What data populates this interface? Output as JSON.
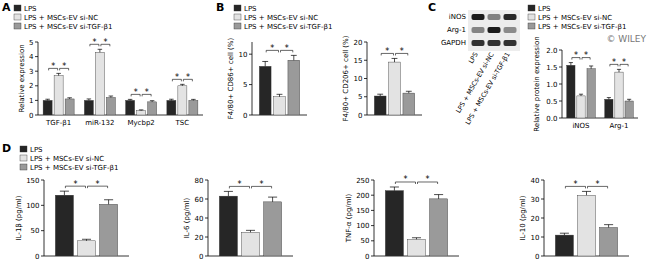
{
  "chart_data": [
    {
      "type": "bar",
      "panel": "A",
      "ylabel": "Relative expression",
      "categories": [
        "TGF-β1",
        "miR-132",
        "Mycbp2",
        "TSC"
      ],
      "series": [
        {
          "name": "LPS",
          "color": "#262626",
          "values": [
            1.0,
            1.0,
            1.0,
            1.0
          ],
          "errors": [
            0.08,
            0.1,
            0.07,
            0.08
          ]
        },
        {
          "name": "LPS + MSCs-EV si-NC",
          "color": "#e3e3e3",
          "values": [
            2.7,
            4.3,
            0.3,
            2.0
          ],
          "errors": [
            0.15,
            0.2,
            0.05,
            0.1
          ]
        },
        {
          "name": "LPS + MSCs-EV si-TGF-β1",
          "color": "#9a9a9a",
          "values": [
            1.1,
            1.2,
            0.9,
            1.0
          ],
          "errors": [
            0.08,
            0.1,
            0.08,
            0.07
          ]
        }
      ],
      "ylim": [
        0,
        5
      ],
      "yticks": [
        0,
        1,
        2,
        3,
        4,
        5
      ],
      "legend": "top-left",
      "comparisons": [
        {
          "series": [
            0,
            1
          ],
          "label": "*"
        },
        {
          "series": [
            1,
            2
          ],
          "label": "*"
        }
      ]
    },
    {
      "type": "bar",
      "panel": "B",
      "ylabel": "F4/80+ CD86+ cell (%)",
      "categories": [
        null
      ],
      "series": [
        {
          "name": "LPS",
          "color": "#262626",
          "values": [
            8.0
          ],
          "errors": [
            0.8
          ]
        },
        {
          "name": "LPS + MSCs-EV si-NC",
          "color": "#e3e3e3",
          "values": [
            3.0
          ],
          "errors": [
            0.4
          ]
        },
        {
          "name": "LPS + MSCs-EV si-TGF-β1",
          "color": "#9a9a9a",
          "values": [
            9.0
          ],
          "errors": [
            0.8
          ]
        }
      ],
      "ylim": [
        0,
        12
      ],
      "yticks": [
        0,
        5,
        10
      ],
      "legend": "top-left",
      "comparisons": [
        {
          "series": [
            0,
            1
          ],
          "label": "*"
        },
        {
          "series": [
            1,
            2
          ],
          "label": "*"
        }
      ]
    },
    {
      "type": "bar",
      "ylabel": "F4/80+ CD206+ cell (%)",
      "categories": [
        null
      ],
      "series": [
        {
          "color": "#262626",
          "values": [
            5.2
          ],
          "errors": [
            0.5
          ]
        },
        {
          "color": "#e3e3e3",
          "values": [
            14.5
          ],
          "errors": [
            1.0
          ]
        },
        {
          "color": "#9a9a9a",
          "values": [
            6.0
          ],
          "errors": [
            0.5
          ]
        }
      ],
      "ylim": [
        0,
        20
      ],
      "yticks": [
        0,
        5,
        10,
        15,
        20
      ],
      "comparisons": [
        {
          "series": [
            0,
            1
          ],
          "label": "*"
        },
        {
          "series": [
            1,
            2
          ],
          "label": "*"
        }
      ]
    },
    {
      "type": "bar",
      "ylabel": "Relative protein expression",
      "categories": [
        "iNOS",
        "Arg-1"
      ],
      "series": [
        {
          "name": "LPS",
          "color": "#262626",
          "values": [
            1.55,
            0.55
          ],
          "errors": [
            0.08,
            0.05
          ]
        },
        {
          "name": "LPS + MSCs-EV si-NC",
          "color": "#e3e3e3",
          "values": [
            0.65,
            1.35
          ],
          "errors": [
            0.05,
            0.08
          ]
        },
        {
          "name": "LPS + MSCs-EV si-TGF-β1",
          "color": "#9a9a9a",
          "values": [
            1.45,
            0.5
          ],
          "errors": [
            0.08,
            0.05
          ]
        }
      ],
      "ylim": [
        0,
        2
      ],
      "yticks": [
        {
          "value": 0,
          "label": "0.0"
        },
        {
          "value": 0.5,
          "label": "0.5"
        },
        {
          "value": 1,
          "label": "1.0"
        },
        {
          "value": 1.5,
          "label": "1.5"
        },
        {
          "value": 2,
          "label": "2.0"
        }
      ],
      "legend": "top-right",
      "comparisons": [
        {
          "series": [
            0,
            1
          ],
          "label": "*"
        },
        {
          "series": [
            1,
            2
          ],
          "label": "*"
        }
      ]
    },
    {
      "type": "bar",
      "panel": "D",
      "ylabel": "IL-1β (pg/ml)",
      "categories": [
        null
      ],
      "series": [
        {
          "name": "LPS",
          "color": "#262626",
          "values": [
            120
          ],
          "errors": [
            8
          ]
        },
        {
          "name": "LPS + MSCs-EV si-NC",
          "color": "#e3e3e3",
          "values": [
            30
          ],
          "errors": [
            3
          ]
        },
        {
          "name": "LPS + MSCs-EV si-TGF-β1",
          "color": "#9a9a9a",
          "values": [
            102
          ],
          "errors": [
            9
          ]
        }
      ],
      "ylim": [
        0,
        150
      ],
      "yticks": [
        0,
        50,
        100,
        150
      ],
      "legend": "top-left",
      "comparisons": [
        {
          "series": [
            0,
            1
          ],
          "label": "*"
        },
        {
          "series": [
            1,
            2
          ],
          "label": "*"
        }
      ]
    },
    {
      "type": "bar",
      "ylabel": "IL-6 (pg/ml)",
      "categories": [
        null
      ],
      "series": [
        {
          "color": "#262626",
          "values": [
            63
          ],
          "errors": [
            5
          ]
        },
        {
          "color": "#e3e3e3",
          "values": [
            25
          ],
          "errors": [
            2
          ]
        },
        {
          "color": "#9a9a9a",
          "values": [
            57
          ],
          "errors": [
            5
          ]
        }
      ],
      "ylim": [
        0,
        80
      ],
      "yticks": [
        0,
        20,
        40,
        60,
        80
      ],
      "comparisons": [
        {
          "series": [
            0,
            1
          ],
          "label": "*"
        },
        {
          "series": [
            1,
            2
          ],
          "label": "*"
        }
      ]
    },
    {
      "type": "bar",
      "ylabel": "TNF-α (pg/ml)",
      "categories": [
        null
      ],
      "series": [
        {
          "color": "#262626",
          "values": [
            215
          ],
          "errors": [
            12
          ]
        },
        {
          "color": "#e3e3e3",
          "values": [
            55
          ],
          "errors": [
            5
          ]
        },
        {
          "color": "#9a9a9a",
          "values": [
            188
          ],
          "errors": [
            14
          ]
        }
      ],
      "ylim": [
        0,
        250
      ],
      "yticks": [
        0,
        50,
        100,
        150,
        200,
        250
      ],
      "comparisons": [
        {
          "series": [
            0,
            1
          ],
          "label": "*"
        },
        {
          "series": [
            1,
            2
          ],
          "label": "*"
        }
      ]
    },
    {
      "type": "bar",
      "ylabel": "IL-10 (pg/ml)",
      "categories": [
        null
      ],
      "series": [
        {
          "color": "#262626",
          "values": [
            11
          ],
          "errors": [
            1
          ]
        },
        {
          "color": "#e3e3e3",
          "values": [
            32
          ],
          "errors": [
            2
          ]
        },
        {
          "color": "#9a9a9a",
          "values": [
            15
          ],
          "errors": [
            1.5
          ]
        }
      ],
      "ylim": [
        0,
        40
      ],
      "yticks": [
        0,
        10,
        20,
        30,
        40
      ],
      "comparisons": [
        {
          "series": [
            0,
            1
          ],
          "label": "*"
        },
        {
          "series": [
            1,
            2
          ],
          "label": "*"
        }
      ]
    }
  ],
  "blot": {
    "panel": "C",
    "rows": [
      "iNOS",
      "Arg-1",
      "GAPDH"
    ],
    "lanes": [
      "LPS",
      "LPS + MSCs-EV si-NC",
      "LPS + MSCs-EV si-TGF-β1"
    ]
  },
  "watermark": "© WILEY"
}
